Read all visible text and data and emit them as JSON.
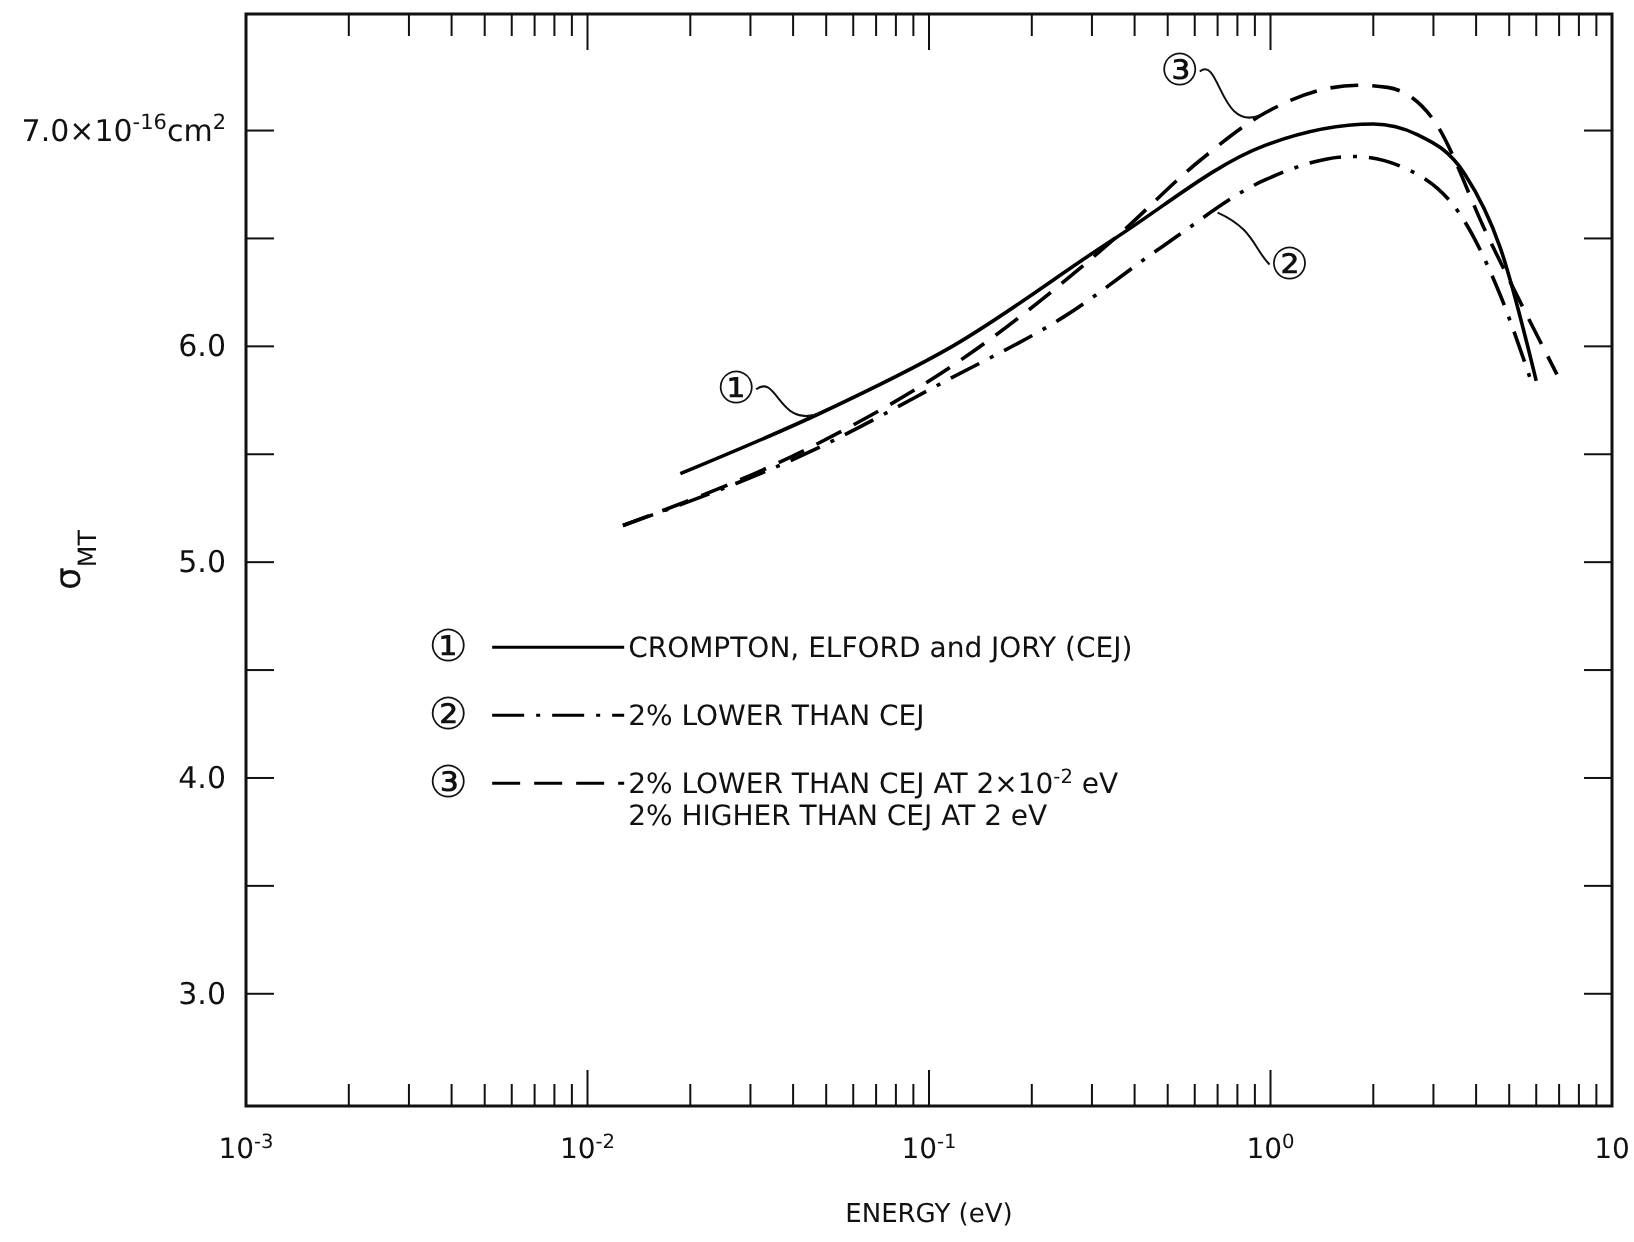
{
  "chart_data": {
    "type": "line",
    "xlabel": "ENERGY  (eV)",
    "ylabel": "σ$_{MT}$",
    "log": "x",
    "legend": "left",
    "xlim": [
      0.001,
      10
    ],
    "ylim": [
      2.48,
      7.54
    ],
    "xticks": [
      {
        "value": 0.001,
        "label": "10$^{-3}$"
      },
      {
        "value": 0.002,
        "label": null
      },
      {
        "value": 0.003,
        "label": null
      },
      {
        "value": 0.004,
        "label": null
      },
      {
        "value": 0.005,
        "label": null
      },
      {
        "value": 0.006,
        "label": null
      },
      {
        "value": 0.007,
        "label": null
      },
      {
        "value": 0.008,
        "label": null
      },
      {
        "value": 0.009,
        "label": null
      },
      {
        "value": 0.01,
        "label": "10$^{-2}$"
      },
      {
        "value": 0.02,
        "label": null
      },
      {
        "value": 0.03,
        "label": null
      },
      {
        "value": 0.04,
        "label": null
      },
      {
        "value": 0.05,
        "label": null
      },
      {
        "value": 0.06,
        "label": null
      },
      {
        "value": 0.07,
        "label": null
      },
      {
        "value": 0.08,
        "label": null
      },
      {
        "value": 0.09,
        "label": null
      },
      {
        "value": 0.1,
        "label": "10$^{-1}$"
      },
      {
        "value": 0.2,
        "label": null
      },
      {
        "value": 0.3,
        "label": null
      },
      {
        "value": 0.4,
        "label": null
      },
      {
        "value": 0.5,
        "label": null
      },
      {
        "value": 0.6,
        "label": null
      },
      {
        "value": 0.7,
        "label": null
      },
      {
        "value": 0.8,
        "label": null
      },
      {
        "value": 0.9,
        "label": null
      },
      {
        "value": 1,
        "label": "10$^{0}$"
      },
      {
        "value": 2,
        "label": null
      },
      {
        "value": 3,
        "label": null
      },
      {
        "value": 4,
        "label": null
      },
      {
        "value": 5,
        "label": null
      },
      {
        "value": 6,
        "label": null
      },
      {
        "value": 7,
        "label": null
      },
      {
        "value": 8,
        "label": null
      },
      {
        "value": 9,
        "label": null
      },
      {
        "value": 10,
        "label": "10"
      }
    ],
    "yticks": [
      {
        "value": 3,
        "label": "3.0"
      },
      {
        "value": 3.5,
        "label": null
      },
      {
        "value": 4,
        "label": "4.0"
      },
      {
        "value": 4.5,
        "label": null
      },
      {
        "value": 5,
        "label": "5.0"
      },
      {
        "value": 5.5,
        "label": null
      },
      {
        "value": 6,
        "label": "6.0"
      },
      {
        "value": 6.5,
        "label": null
      },
      {
        "value": 7,
        "label": "7.0×10$^{-16}$cm$^{2}$"
      }
    ],
    "series": [
      {
        "name": "CROMPTON, ELFORD and JORY (CEJ)",
        "color": "#000000",
        "line_style": "solid",
        "x": [
          0.0187,
          0.048,
          0.117,
          0.35,
          0.96,
          2.0,
          2.7,
          3.7,
          4.7,
          6.0
        ],
        "values": [
          5.41,
          5.69,
          6.0,
          6.5,
          6.93,
          7.03,
          6.98,
          6.8,
          6.46,
          5.84
        ]
      },
      {
        "name": "2% LOWER THAN CEJ",
        "color": "#000000",
        "line_style": "dashdot",
        "x": [
          0.0127,
          0.046,
          0.112,
          0.25,
          0.49,
          0.96,
          1.74,
          2.6,
          3.7,
          4.7,
          5.85
        ],
        "values": [
          5.17,
          5.52,
          5.84,
          6.14,
          6.47,
          6.77,
          6.88,
          6.81,
          6.58,
          6.24,
          5.82
        ]
      },
      {
        "name": "2% LOWER THAN CEJ AT 2×10$^{-2}$ eV\n2% HIGHER THAN CEJ AT 2 eV",
        "color": "#000000",
        "line_style": "dashed",
        "x": [
          0.0127,
          0.046,
          0.117,
          0.35,
          0.62,
          0.96,
          1.8,
          2.2,
          3.0,
          4.3,
          6.9
        ],
        "values": [
          5.17,
          5.54,
          5.91,
          6.5,
          6.86,
          7.08,
          7.21,
          7.2,
          7.05,
          6.52,
          5.87
        ]
      }
    ],
    "annotations": [
      "①",
      "②",
      "③",
      {
        "text": "①",
        "x": 0.048,
        "y": 5.69
      },
      {
        "text": "②",
        "x": 0.7,
        "y": 6.62
      },
      {
        "text": "③",
        "x": 0.93,
        "y": 7.07
      }
    ]
  }
}
